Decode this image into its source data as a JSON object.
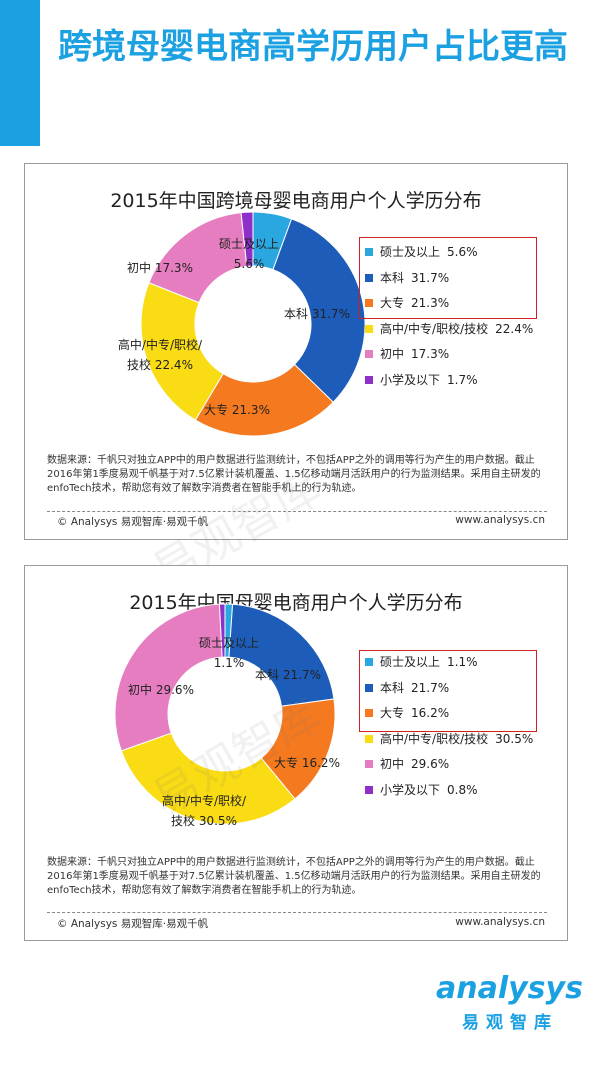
{
  "page": {
    "title": "跨境母婴电商高学历用户占比更高",
    "accent_color": "#1ba1e2"
  },
  "chart_data": [
    {
      "type": "pie",
      "title": "2015年中国跨境母婴电商用户个人学历分布",
      "categories": [
        "硕士及以上",
        "本科",
        "大专",
        "高中/中专/职校/技校",
        "初中",
        "小学及以下"
      ],
      "values": [
        5.6,
        31.7,
        21.3,
        22.4,
        17.3,
        1.7
      ],
      "value_labels": [
        "5.6%",
        "31.7%",
        "21.3%",
        "22.4%",
        "17.3%",
        "1.7%"
      ],
      "colors": [
        "#2aa7e0",
        "#1d5cb8",
        "#f4791f",
        "#f9dc14",
        "#e67dc0",
        "#8f2fc9"
      ],
      "legend": "right",
      "legend_highlight": "top-3 outlined in red"
    },
    {
      "type": "pie",
      "title": "2015年中国母婴电商用户个人学历分布",
      "categories": [
        "硕士及以上",
        "本科",
        "大专",
        "高中/中专/职校/技校",
        "初中",
        "小学及以下"
      ],
      "values": [
        1.1,
        21.7,
        16.2,
        30.5,
        29.6,
        0.8
      ],
      "value_labels": [
        "1.1%",
        "21.7%",
        "16.2%",
        "30.5%",
        "29.6%",
        "0.8%"
      ],
      "colors": [
        "#2aa7e0",
        "#1d5cb8",
        "#f4791f",
        "#f9dc14",
        "#e67dc0",
        "#8f2fc9"
      ],
      "legend": "right",
      "legend_highlight": "top-3 outlined in red"
    }
  ],
  "footer": {
    "source": "数据来源：千帆只对独立APP中的用户数据进行监测统计，不包括APP之外的调用等行为产生的用户数据。截止2016年第1季度易观千帆基于对7.5亿累计装机覆盖、1.5亿移动端月活跃用户的行为监测结果。采用自主研发的enfoTech技术，帮助您有效了解数字消费者在智能手机上的行为轨迹。",
    "copyright": "© Analysys 易观智库·易观千帆",
    "url": "www.analysys.cn"
  },
  "watermark": "易观智库",
  "logo": {
    "word": "analysys",
    "sub": "易观智库"
  }
}
